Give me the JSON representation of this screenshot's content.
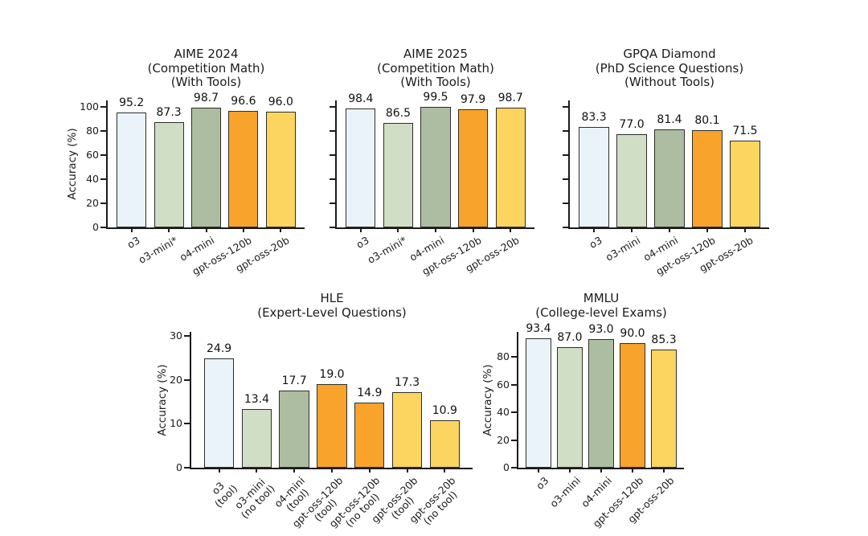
{
  "figure": {
    "background": "#ffffff",
    "text_color": "#1b1b1b",
    "bar_edge_color": "#2e2e28",
    "axis_color": "#1b1b1b",
    "model_colors": {
      "o3": "#e9f3f9",
      "o3-mini": "#d0dec6",
      "o4-mini": "#adbda2",
      "gpt-oss-120b": "#f8a32b",
      "gpt-oss-20b": "#fbd560"
    }
  },
  "chart_data": [
    {
      "type": "bar",
      "title": "AIME 2024\n(Competition Math)\n(With Tools)",
      "xlabel": "",
      "ylabel": "Accuracy (%)",
      "categories": [
        "o3",
        "o3-mini*",
        "o4-mini",
        "gpt-oss-120b",
        "gpt-oss-20b"
      ],
      "values": [
        95.2,
        87.3,
        98.7,
        96.6,
        96.0
      ],
      "value_labels": [
        "95.2",
        "87.3",
        "98.7",
        "96.6",
        "96.0"
      ],
      "bar_colors": [
        "#e9f3f9",
        "#d0dec6",
        "#adbda2",
        "#f8a32b",
        "#fbd560"
      ],
      "ylim": [
        0,
        105
      ],
      "yticks": [
        0,
        20,
        40,
        60,
        80,
        100
      ],
      "show_ytick_labels": true,
      "grid": false,
      "legend": "none"
    },
    {
      "type": "bar",
      "title": "AIME 2025\n(Competition Math)\n(With Tools)",
      "xlabel": "",
      "ylabel": "",
      "categories": [
        "o3",
        "o3-mini*",
        "o4-mini",
        "gpt-oss-120b",
        "gpt-oss-20b"
      ],
      "values": [
        98.4,
        86.5,
        99.5,
        97.9,
        98.7
      ],
      "value_labels": [
        "98.4",
        "86.5",
        "99.5",
        "97.9",
        "98.7"
      ],
      "bar_colors": [
        "#e9f3f9",
        "#d0dec6",
        "#adbda2",
        "#f8a32b",
        "#fbd560"
      ],
      "ylim": [
        0,
        105
      ],
      "yticks": [
        0,
        20,
        40,
        60,
        80,
        100
      ],
      "show_ytick_labels": false,
      "grid": false,
      "legend": "none"
    },
    {
      "type": "bar",
      "title": "GPQA Diamond\n(PhD Science Questions)\n(Without Tools)",
      "xlabel": "",
      "ylabel": "",
      "categories": [
        "o3",
        "o3-mini",
        "o4-mini",
        "gpt-oss-120b",
        "gpt-oss-20b"
      ],
      "values": [
        83.3,
        77.0,
        81.4,
        80.1,
        71.5
      ],
      "value_labels": [
        "83.3",
        "77.0",
        "81.4",
        "80.1",
        "71.5"
      ],
      "bar_colors": [
        "#e9f3f9",
        "#d0dec6",
        "#adbda2",
        "#f8a32b",
        "#fbd560"
      ],
      "ylim": [
        0,
        105
      ],
      "yticks": [
        0,
        20,
        40,
        60,
        80,
        100
      ],
      "show_ytick_labels": false,
      "grid": false,
      "legend": "none"
    },
    {
      "type": "bar",
      "title": "HLE\n(Expert-Level Questions)",
      "xlabel": "",
      "ylabel": "Accuracy (%)",
      "categories": [
        "o3\n(tool)",
        "o3-mini\n(no tool)",
        "o4-mini\n(tool)",
        "gpt-oss-120b\n(tool)",
        "gpt-oss-120b\n(no tool)",
        "gpt-oss-20b\n(tool)",
        "gpt-oss-20b\n(no tool)"
      ],
      "values": [
        24.9,
        13.4,
        17.7,
        19.0,
        14.9,
        17.3,
        10.9
      ],
      "value_labels": [
        "24.9",
        "13.4",
        "17.7",
        "19.0",
        "14.9",
        "17.3",
        "10.9"
      ],
      "bar_colors": [
        "#e9f3f9",
        "#d0dec6",
        "#adbda2",
        "#f8a32b",
        "#f8a32b",
        "#fbd560",
        "#fbd560"
      ],
      "ylim": [
        0,
        31
      ],
      "yticks": [
        0,
        10,
        20,
        30
      ],
      "show_ytick_labels": true,
      "grid": false,
      "legend": "none"
    },
    {
      "type": "bar",
      "title": "MMLU\n(College-level Exams)",
      "xlabel": "",
      "ylabel": "Accuracy (%)",
      "categories": [
        "o3",
        "o3-mini",
        "o4-mini",
        "gpt-oss-120b",
        "gpt-oss-20b"
      ],
      "values": [
        93.4,
        87.0,
        93.0,
        90.0,
        85.3
      ],
      "value_labels": [
        "93.4",
        "87.0",
        "93.0",
        "90.0",
        "85.3"
      ],
      "bar_colors": [
        "#e9f3f9",
        "#d0dec6",
        "#adbda2",
        "#f8a32b",
        "#fbd560"
      ],
      "ylim": [
        0,
        98
      ],
      "yticks": [
        0,
        20,
        40,
        60,
        80
      ],
      "show_ytick_labels": true,
      "grid": false,
      "legend": "none"
    }
  ]
}
